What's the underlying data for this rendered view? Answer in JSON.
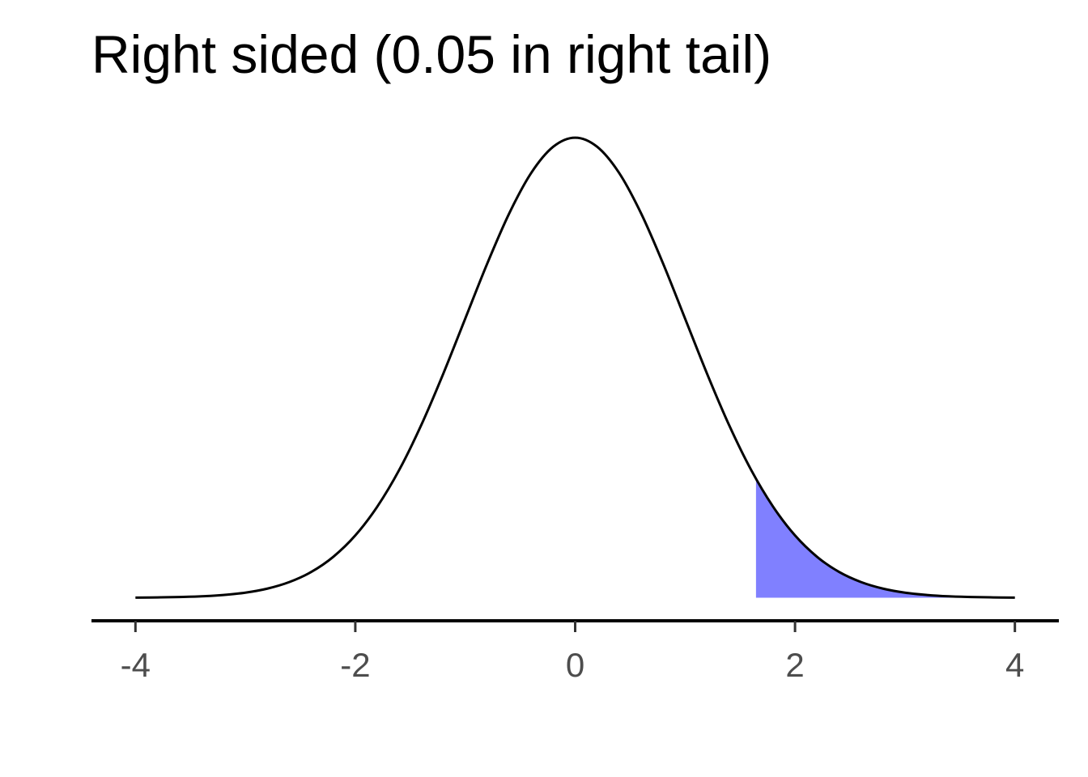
{
  "chart_data": {
    "type": "line",
    "title": "Right sided (0.05 in right tail)",
    "series": [
      {
        "color": "#8080ff",
        "fill": true,
        "x": [
          1.645,
          1.8,
          2.0,
          2.2,
          2.4,
          2.6,
          2.8,
          3.0,
          3.2,
          3.4,
          3.6,
          3.8,
          4.0
        ],
        "values": [
          0.1031,
          0.079,
          0.054,
          0.0355,
          0.0224,
          0.0136,
          0.0079,
          0.0044,
          0.0024,
          0.0012,
          0.0006,
          0.0003,
          0.0001
        ]
      },
      {
        "color": "#000000",
        "fill": false,
        "x": [
          -4.0,
          -3.8,
          -3.6,
          -3.4,
          -3.2,
          -3.0,
          -2.8,
          -2.6,
          -2.4,
          -2.2,
          -2.0,
          -1.8,
          -1.6,
          -1.4,
          -1.2,
          -1.0,
          -0.8,
          -0.6,
          -0.4,
          -0.2,
          0.0,
          0.2,
          0.4,
          0.6,
          0.8,
          1.0,
          1.2,
          1.4,
          1.6,
          1.8,
          2.0,
          2.2,
          2.4,
          2.6,
          2.8,
          3.0,
          3.2,
          3.4,
          3.6,
          3.8,
          4.0
        ],
        "values": [
          0.0001,
          0.0003,
          0.0006,
          0.0012,
          0.0024,
          0.0044,
          0.0079,
          0.0136,
          0.0224,
          0.0355,
          0.054,
          0.079,
          0.1109,
          0.1497,
          0.1942,
          0.242,
          0.2897,
          0.3332,
          0.3683,
          0.391,
          0.3989,
          0.391,
          0.3683,
          0.3332,
          0.2897,
          0.242,
          0.1942,
          0.1497,
          0.1109,
          0.079,
          0.054,
          0.0355,
          0.0224,
          0.0136,
          0.0079,
          0.0044,
          0.0024,
          0.0012,
          0.0006,
          0.0003,
          0.0001
        ]
      }
    ],
    "xlim": [
      -4.4,
      4.4
    ],
    "xticks": [
      -4,
      -2,
      0,
      2,
      4
    ],
    "ylim": [
      -0.02,
      0.42
    ]
  }
}
